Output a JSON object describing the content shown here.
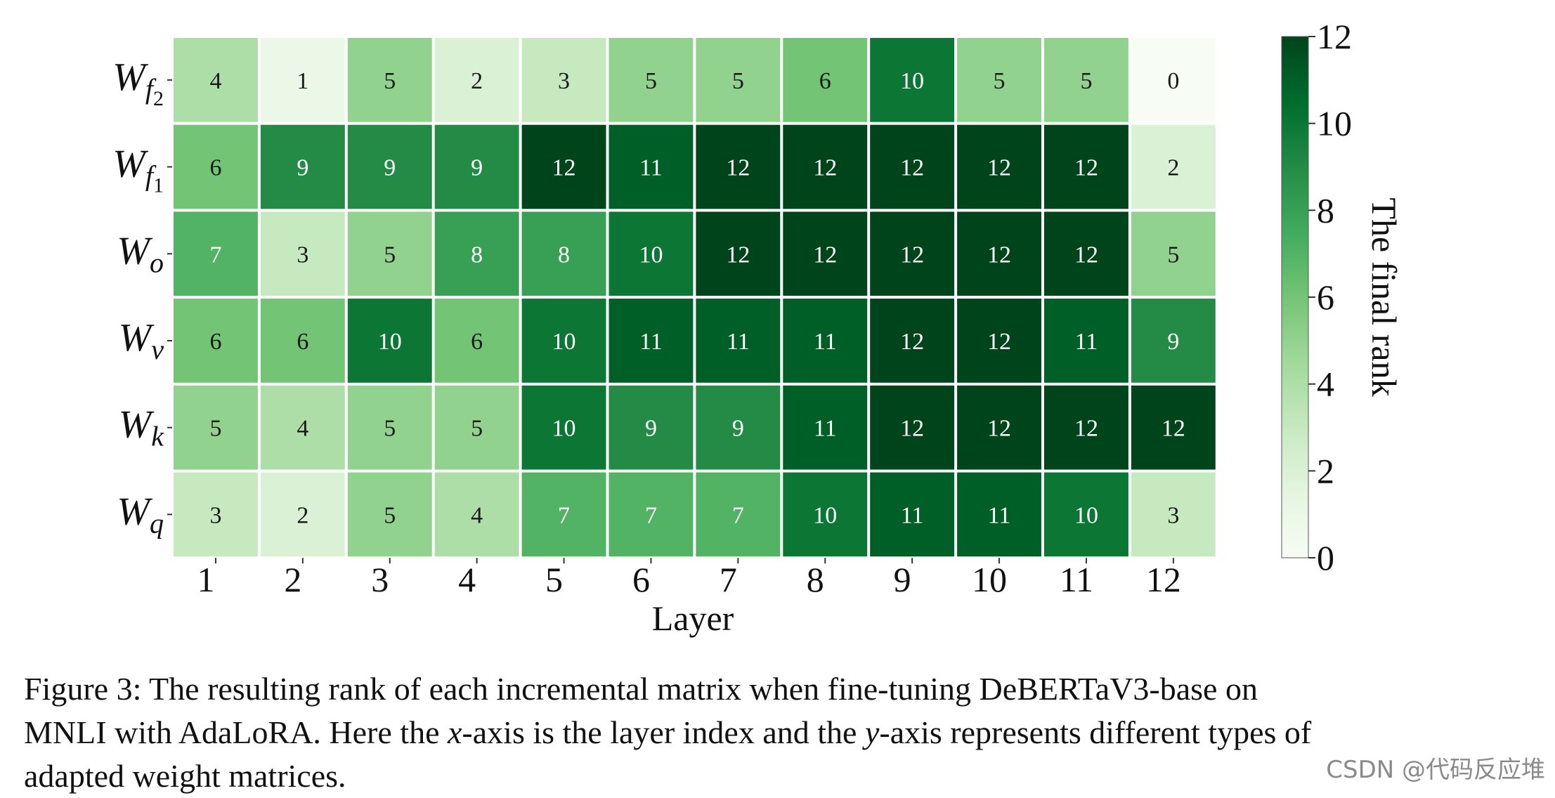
{
  "chart_data": {
    "type": "heatmap",
    "xlabel": "Layer",
    "x_categories": [
      "1",
      "2",
      "3",
      "4",
      "5",
      "6",
      "7",
      "8",
      "9",
      "10",
      "11",
      "12"
    ],
    "y_categories": [
      "W_f2",
      "W_f1",
      "W_o",
      "W_v",
      "W_k",
      "W_q"
    ],
    "y_labels": [
      {
        "base": "W",
        "sub": "f",
        "subsub": "2"
      },
      {
        "base": "W",
        "sub": "f",
        "subsub": "1"
      },
      {
        "base": "W",
        "sub": "o",
        "subsub": ""
      },
      {
        "base": "W",
        "sub": "v",
        "subsub": ""
      },
      {
        "base": "W",
        "sub": "k",
        "subsub": ""
      },
      {
        "base": "W",
        "sub": "q",
        "subsub": ""
      }
    ],
    "values": [
      [
        4,
        1,
        5,
        2,
        3,
        5,
        5,
        6,
        10,
        5,
        5,
        0
      ],
      [
        6,
        9,
        9,
        9,
        12,
        11,
        12,
        12,
        12,
        12,
        12,
        2
      ],
      [
        7,
        3,
        5,
        8,
        8,
        10,
        12,
        12,
        12,
        12,
        12,
        5
      ],
      [
        6,
        6,
        10,
        6,
        10,
        11,
        11,
        11,
        12,
        12,
        11,
        9
      ],
      [
        5,
        4,
        5,
        5,
        10,
        9,
        9,
        11,
        12,
        12,
        12,
        12
      ],
      [
        3,
        2,
        5,
        4,
        7,
        7,
        7,
        10,
        11,
        11,
        10,
        3
      ]
    ],
    "colorbar": {
      "label": "The final rank",
      "range": [
        0,
        12
      ],
      "ticks": [
        0,
        2,
        4,
        6,
        8,
        10,
        12
      ],
      "colormap": "Greens"
    }
  },
  "caption": {
    "line1": "Figure 3: The resulting rank of each incremental matrix when fine-tuning DeBERTaV3-base on",
    "line2_a": "MNLI with AdaLoRA. Here the ",
    "line2_x": "x",
    "line2_b": "-axis is the layer index and the ",
    "line2_y": "y",
    "line2_c": "-axis represents different types of",
    "line3": "adapted weight matrices."
  },
  "watermark": "CSDN @代码反应堆"
}
